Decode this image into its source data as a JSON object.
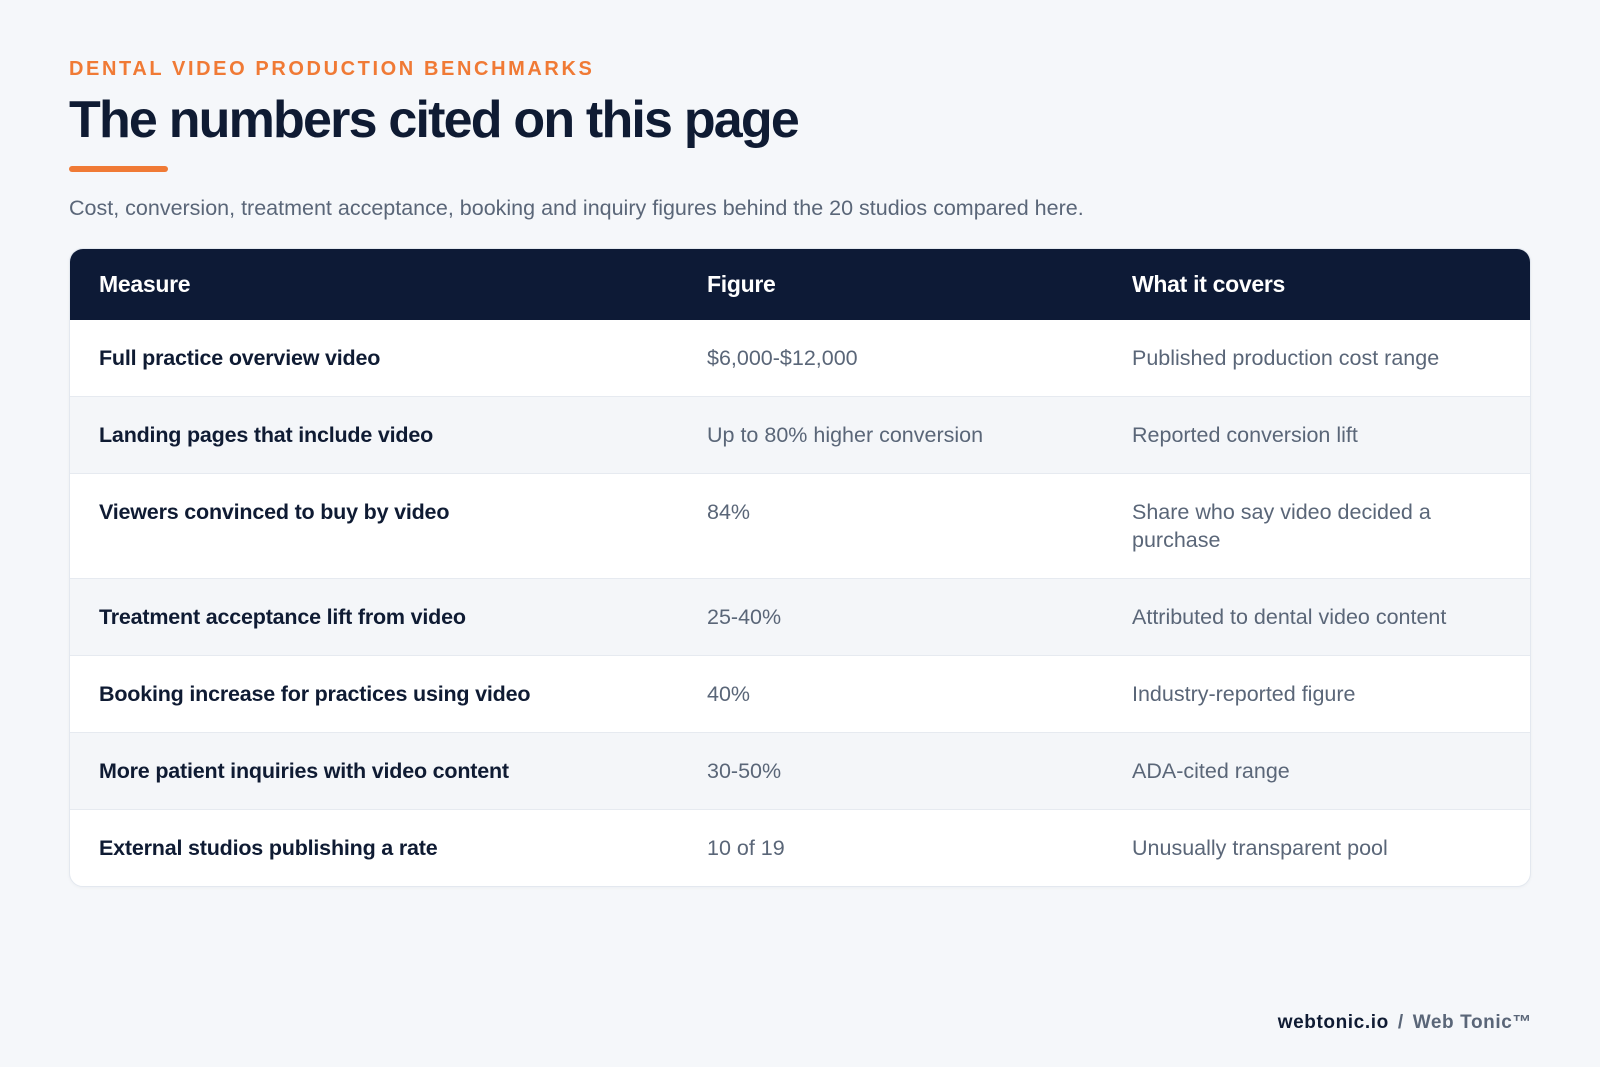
{
  "header": {
    "eyebrow": "DENTAL VIDEO PRODUCTION BENCHMARKS",
    "title": "The numbers cited on this page",
    "subtitle": "Cost, conversion, treatment acceptance, booking and inquiry figures behind the 20 studios compared here."
  },
  "colors": {
    "accent": "#f07a35",
    "navy": "#0d1a36",
    "muted_text": "#5a6678",
    "background": "#f5f7fa"
  },
  "table": {
    "headers": {
      "measure": "Measure",
      "figure": "Figure",
      "covers": "What it covers"
    },
    "rows": [
      {
        "measure": "Full practice overview video",
        "figure": "$6,000-$12,000",
        "covers": "Published production cost range"
      },
      {
        "measure": "Landing pages that include video",
        "figure": "Up to 80% higher conversion",
        "covers": "Reported conversion lift"
      },
      {
        "measure": "Viewers convinced to buy by video",
        "figure": "84%",
        "covers": "Share who say video decided a purchase"
      },
      {
        "measure": "Treatment acceptance lift from video",
        "figure": "25-40%",
        "covers": "Attributed to dental video content"
      },
      {
        "measure": "Booking increase for practices using video",
        "figure": "40%",
        "covers": "Industry-reported figure"
      },
      {
        "measure": "More patient inquiries with video content",
        "figure": "30-50%",
        "covers": "ADA-cited range"
      },
      {
        "measure": "External studios publishing a rate",
        "figure": "10 of 19",
        "covers": "Unusually transparent pool"
      }
    ]
  },
  "footer": {
    "domain": "webtonic.io",
    "separator": "/",
    "brand": "Web Tonic™"
  }
}
